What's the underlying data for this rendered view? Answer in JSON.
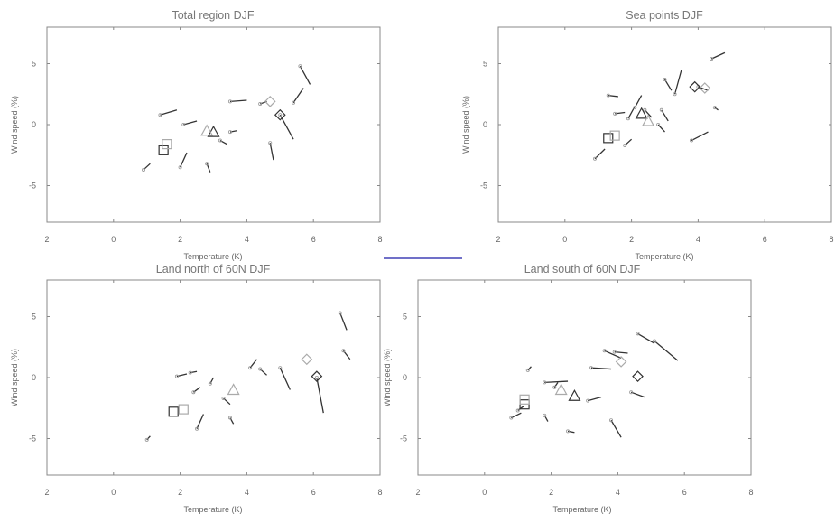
{
  "colors": {
    "frame": "#888888",
    "segments": "#333333",
    "marker_dark": "#333333",
    "marker_light": "#aaaaaa",
    "divider": "#1a1aa8"
  },
  "chart_data": [
    {
      "type": "scatter",
      "title": "Total region DJF",
      "xlabel": "Temperature (K)",
      "ylabel": "Wind speed (%)",
      "xlim": [
        -2,
        8
      ],
      "ylim": [
        -8,
        8
      ],
      "x_tick_labels": [
        "2",
        "0",
        "2",
        "4",
        "6",
        "8"
      ],
      "y_tick_labels": [
        "5",
        "0",
        "-5"
      ],
      "grid": false,
      "segments": [
        [
          0.9,
          -3.7,
          1.1,
          -3.2
        ],
        [
          1.4,
          0.8,
          1.9,
          1.2
        ],
        [
          2.1,
          0.0,
          2.5,
          0.3
        ],
        [
          2.0,
          -3.5,
          2.2,
          -2.3
        ],
        [
          2.8,
          -3.2,
          2.9,
          -3.9
        ],
        [
          3.2,
          -1.3,
          3.4,
          -1.6
        ],
        [
          3.5,
          -0.6,
          3.7,
          -0.5
        ],
        [
          3.5,
          1.9,
          4.0,
          2.0
        ],
        [
          4.4,
          1.7,
          4.6,
          1.9
        ],
        [
          4.7,
          -1.5,
          4.8,
          -2.9
        ],
        [
          5.0,
          0.8,
          5.4,
          -1.2
        ],
        [
          5.4,
          1.8,
          5.7,
          3.0
        ],
        [
          5.6,
          4.8,
          5.9,
          3.3
        ]
      ],
      "markers": [
        {
          "shape": "square",
          "x": 1.5,
          "y": -2.1,
          "tone": "dark"
        },
        {
          "shape": "square",
          "x": 1.6,
          "y": -1.6,
          "tone": "light"
        },
        {
          "shape": "triangle",
          "x": 3.0,
          "y": -0.6,
          "tone": "dark"
        },
        {
          "shape": "triangle",
          "x": 2.8,
          "y": -0.5,
          "tone": "light"
        },
        {
          "shape": "diamond",
          "x": 5.0,
          "y": 0.8,
          "tone": "dark"
        },
        {
          "shape": "diamond",
          "x": 4.7,
          "y": 1.9,
          "tone": "light"
        }
      ]
    },
    {
      "type": "scatter",
      "title": "Sea points DJF",
      "xlabel": "Temperature (K)",
      "ylabel": "Wind speed (%)",
      "xlim": [
        -2,
        8
      ],
      "ylim": [
        -8,
        8
      ],
      "x_tick_labels": [
        "2",
        "0",
        "2",
        "4",
        "6",
        "8"
      ],
      "y_tick_labels": [
        "5",
        "0",
        "-5"
      ],
      "grid": false,
      "segments": [
        [
          0.9,
          -2.8,
          1.2,
          -2.0
        ],
        [
          1.3,
          2.4,
          1.6,
          2.3
        ],
        [
          1.5,
          0.9,
          1.8,
          1.0
        ],
        [
          1.8,
          -1.7,
          2.0,
          -1.2
        ],
        [
          1.9,
          0.5,
          2.1,
          1.5
        ],
        [
          2.1,
          1.4,
          2.3,
          2.4
        ],
        [
          2.4,
          1.2,
          2.6,
          0.6
        ],
        [
          2.8,
          0.0,
          3.0,
          -0.6
        ],
        [
          2.9,
          1.2,
          3.1,
          0.3
        ],
        [
          3.0,
          3.7,
          3.2,
          2.8
        ],
        [
          3.3,
          2.5,
          3.5,
          4.5
        ],
        [
          3.8,
          -1.3,
          4.3,
          -0.6
        ],
        [
          4.0,
          3.1,
          4.3,
          2.8
        ],
        [
          4.4,
          5.4,
          4.8,
          5.9
        ],
        [
          4.5,
          1.4,
          4.6,
          1.2
        ]
      ],
      "markers": [
        {
          "shape": "square",
          "x": 1.3,
          "y": -1.1,
          "tone": "dark"
        },
        {
          "shape": "square",
          "x": 1.5,
          "y": -0.9,
          "tone": "light"
        },
        {
          "shape": "triangle",
          "x": 2.3,
          "y": 0.9,
          "tone": "dark"
        },
        {
          "shape": "triangle",
          "x": 2.5,
          "y": 0.3,
          "tone": "light"
        },
        {
          "shape": "diamond",
          "x": 3.9,
          "y": 3.1,
          "tone": "dark"
        },
        {
          "shape": "diamond",
          "x": 4.2,
          "y": 3.0,
          "tone": "light"
        }
      ]
    },
    {
      "type": "scatter",
      "title": "Land north of 60N DJF",
      "xlabel": "Temperature (K)",
      "ylabel": "Wind speed (%)",
      "xlim": [
        -2,
        8
      ],
      "ylim": [
        -8,
        8
      ],
      "x_tick_labels": [
        "2",
        "0",
        "2",
        "4",
        "6",
        "8"
      ],
      "y_tick_labels": [
        "5",
        "0",
        "-5"
      ],
      "grid": false,
      "segments": [
        [
          1.0,
          -5.1,
          1.1,
          -4.8
        ],
        [
          1.9,
          0.1,
          2.2,
          0.3
        ],
        [
          2.3,
          0.4,
          2.5,
          0.5
        ],
        [
          2.4,
          -1.2,
          2.6,
          -0.8
        ],
        [
          2.5,
          -4.2,
          2.7,
          -3.0
        ],
        [
          2.9,
          -0.5,
          3.0,
          0.0
        ],
        [
          3.3,
          -1.7,
          3.5,
          -2.2
        ],
        [
          3.5,
          -3.3,
          3.6,
          -3.8
        ],
        [
          4.1,
          0.8,
          4.3,
          1.5
        ],
        [
          4.4,
          0.7,
          4.6,
          0.2
        ],
        [
          5.0,
          0.8,
          5.3,
          -1.0
        ],
        [
          6.1,
          0.0,
          6.3,
          -2.9
        ],
        [
          6.8,
          5.3,
          7.0,
          3.9
        ],
        [
          6.9,
          2.2,
          7.1,
          1.5
        ]
      ],
      "markers": [
        {
          "shape": "square",
          "x": 1.8,
          "y": -2.8,
          "tone": "dark"
        },
        {
          "shape": "square",
          "x": 2.1,
          "y": -2.6,
          "tone": "light"
        },
        {
          "shape": "triangle",
          "x": 3.6,
          "y": -1.0,
          "tone": "light"
        },
        {
          "shape": "diamond",
          "x": 6.1,
          "y": 0.1,
          "tone": "dark"
        },
        {
          "shape": "diamond",
          "x": 5.8,
          "y": 1.5,
          "tone": "light"
        }
      ]
    },
    {
      "type": "scatter",
      "title": "Land south of 60N DJF",
      "xlabel": "Temperature (K)",
      "ylabel": "Wind speed (%)",
      "xlim": [
        -2,
        8
      ],
      "ylim": [
        -8,
        8
      ],
      "x_tick_labels": [
        "2",
        "0",
        "2",
        "4",
        "6",
        "8"
      ],
      "y_tick_labels": [
        "5",
        "0",
        "-5"
      ],
      "grid": false,
      "segments": [
        [
          0.8,
          -3.3,
          1.1,
          -2.9
        ],
        [
          1.0,
          -2.7,
          1.2,
          -2.3
        ],
        [
          1.3,
          0.6,
          1.4,
          0.9
        ],
        [
          1.8,
          -0.4,
          2.5,
          -0.3
        ],
        [
          1.8,
          -3.1,
          1.9,
          -3.6
        ],
        [
          2.1,
          -0.8,
          2.2,
          -0.4
        ],
        [
          2.5,
          -4.4,
          2.7,
          -4.5
        ],
        [
          3.1,
          -1.9,
          3.5,
          -1.6
        ],
        [
          3.2,
          0.8,
          3.8,
          0.7
        ],
        [
          3.6,
          2.2,
          4.1,
          1.6
        ],
        [
          3.9,
          2.1,
          4.3,
          2.0
        ],
        [
          3.8,
          -3.5,
          4.1,
          -4.9
        ],
        [
          4.4,
          -1.2,
          4.8,
          -1.6
        ],
        [
          4.6,
          3.6,
          5.1,
          2.8
        ],
        [
          5.1,
          3.0,
          5.8,
          1.4
        ]
      ],
      "markers": [
        {
          "shape": "square",
          "x": 1.2,
          "y": -2.2,
          "tone": "dark"
        },
        {
          "shape": "square",
          "x": 1.2,
          "y": -1.8,
          "tone": "light"
        },
        {
          "shape": "triangle",
          "x": 2.7,
          "y": -1.5,
          "tone": "dark"
        },
        {
          "shape": "triangle",
          "x": 2.3,
          "y": -1.0,
          "tone": "light"
        },
        {
          "shape": "diamond",
          "x": 4.6,
          "y": 0.1,
          "tone": "dark"
        },
        {
          "shape": "diamond",
          "x": 4.1,
          "y": 1.3,
          "tone": "light"
        }
      ]
    }
  ]
}
